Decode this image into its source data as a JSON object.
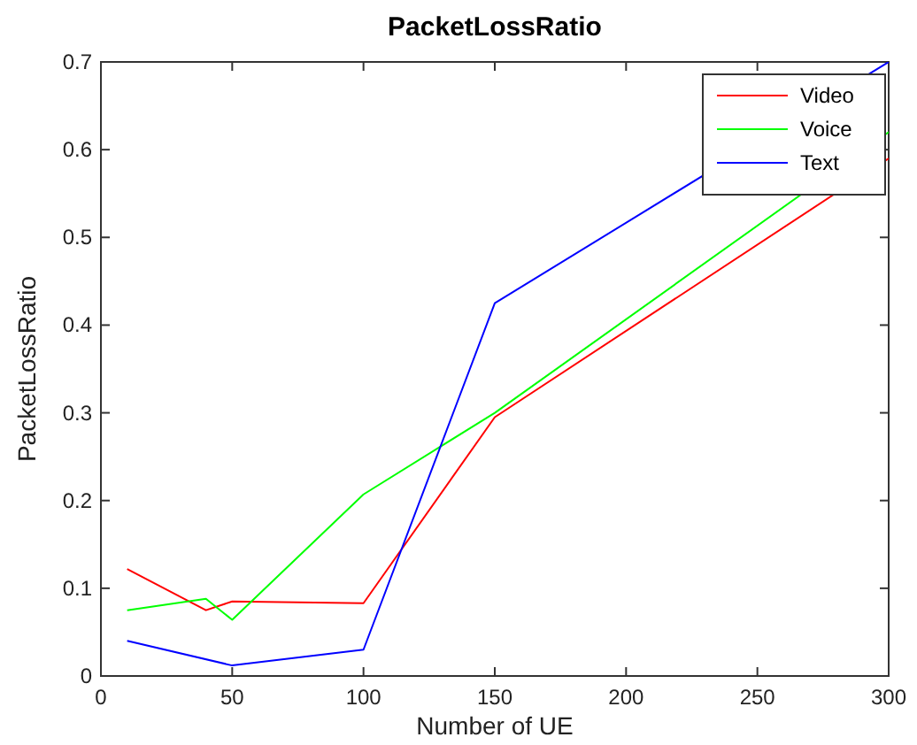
{
  "chart_data": {
    "type": "line",
    "title": "PacketLossRatio",
    "xlabel": "Number of UE",
    "ylabel": "PacketLossRatio",
    "xlim": [
      0,
      300
    ],
    "xticks": [
      0,
      50,
      100,
      150,
      200,
      250,
      300
    ],
    "ylim": [
      0,
      0.7
    ],
    "yticks": [
      0,
      0.1,
      0.2,
      0.3,
      0.4,
      0.5,
      0.6,
      0.7
    ],
    "grid": false,
    "legend": "top right",
    "marker": "none",
    "line_style": "solid",
    "series": [
      {
        "name": "Video",
        "color": "#ff0000",
        "x": [
          10,
          40,
          50,
          100,
          150,
          300
        ],
        "values": [
          0.122,
          0.075,
          0.085,
          0.083,
          0.295,
          0.59
        ]
      },
      {
        "name": "Voice",
        "color": "#00ff00",
        "x": [
          10,
          40,
          50,
          100,
          150,
          300
        ],
        "values": [
          0.075,
          0.088,
          0.064,
          0.207,
          0.3,
          0.62
        ]
      },
      {
        "name": "Text",
        "color": "#0000ff",
        "x": [
          10,
          50,
          100,
          150,
          300
        ],
        "values": [
          0.04,
          0.012,
          0.03,
          0.425,
          0.7
        ]
      }
    ]
  }
}
